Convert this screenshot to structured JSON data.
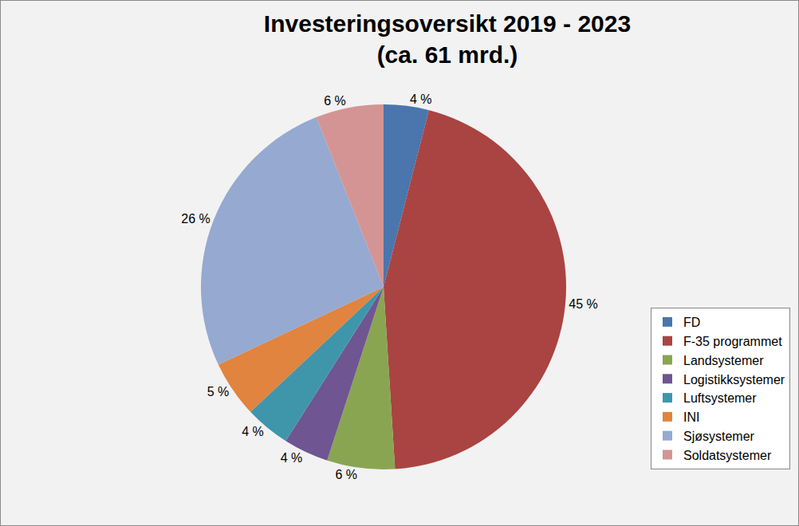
{
  "chart_data": {
    "type": "pie",
    "title": "Investeringsoversikt 2019 - 2023",
    "subtitle": "(ca. 61 mrd.)",
    "categories": [
      "FD",
      "F-35 programmet",
      "Landsystemer",
      "Logistikksystemer",
      "Luftsystemer",
      "INI",
      "Sjøsystemer",
      "Soldatsystemer"
    ],
    "values": [
      4,
      45,
      6,
      4,
      4,
      5,
      26,
      6
    ],
    "value_labels": [
      "4 %",
      "45 %",
      "6 %",
      "4 %",
      "4 %",
      "5 %",
      "26 %",
      "6 %"
    ],
    "colors": [
      "#4a76ad",
      "#a94442",
      "#8aa552",
      "#6f5592",
      "#3f96ab",
      "#e0843f",
      "#95a9d1",
      "#d49494"
    ],
    "data_labels": true,
    "legend": "lower right"
  }
}
